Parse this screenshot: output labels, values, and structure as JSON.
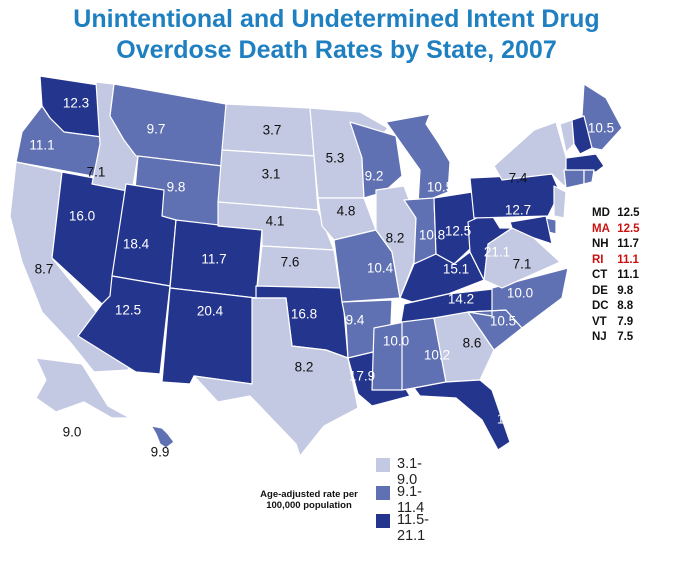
{
  "title_line1": "Unintentional and Undetermined Intent Drug",
  "title_line2": "Overdose Death Rates by State, 2007",
  "colors": {
    "low": "#c3c9e2",
    "mid": "#5f70b3",
    "high": "#24358e",
    "title": "#1e7fc1",
    "highlight": "#cc1111"
  },
  "states": [
    {
      "abbr": "WA",
      "value": "12.3",
      "cat": "high"
    },
    {
      "abbr": "OR",
      "value": "11.1",
      "cat": "mid"
    },
    {
      "abbr": "CA",
      "value": "8.7",
      "cat": "low"
    },
    {
      "abbr": "NV",
      "value": "16.0",
      "cat": "high"
    },
    {
      "abbr": "ID",
      "value": "7.1",
      "cat": "low"
    },
    {
      "abbr": "MT",
      "value": "9.7",
      "cat": "mid"
    },
    {
      "abbr": "WY",
      "value": "9.8",
      "cat": "mid"
    },
    {
      "abbr": "UT",
      "value": "18.4",
      "cat": "high"
    },
    {
      "abbr": "AZ",
      "value": "12.5",
      "cat": "high"
    },
    {
      "abbr": "CO",
      "value": "11.7",
      "cat": "high"
    },
    {
      "abbr": "NM",
      "value": "20.4",
      "cat": "high"
    },
    {
      "abbr": "ND",
      "value": "3.7",
      "cat": "low"
    },
    {
      "abbr": "SD",
      "value": "3.1",
      "cat": "low"
    },
    {
      "abbr": "NE",
      "value": "4.1",
      "cat": "low"
    },
    {
      "abbr": "KS",
      "value": "7.6",
      "cat": "low"
    },
    {
      "abbr": "OK",
      "value": "16.8",
      "cat": "high"
    },
    {
      "abbr": "TX",
      "value": "8.2",
      "cat": "low"
    },
    {
      "abbr": "MN",
      "value": "5.3",
      "cat": "low"
    },
    {
      "abbr": "IA",
      "value": "4.8",
      "cat": "low"
    },
    {
      "abbr": "MO",
      "value": "10.4",
      "cat": "mid"
    },
    {
      "abbr": "AR",
      "value": "9.4",
      "cat": "mid"
    },
    {
      "abbr": "LA",
      "value": "17.9",
      "cat": "high"
    },
    {
      "abbr": "WI",
      "value": "9.2",
      "cat": "mid"
    },
    {
      "abbr": "IL",
      "value": "8.2",
      "cat": "low"
    },
    {
      "abbr": "MI",
      "value": "10.5",
      "cat": "mid"
    },
    {
      "abbr": "IN",
      "value": "10.8",
      "cat": "mid"
    },
    {
      "abbr": "OH",
      "value": "12.5",
      "cat": "high"
    },
    {
      "abbr": "KY",
      "value": "15.1",
      "cat": "high"
    },
    {
      "abbr": "TN",
      "value": "14.2",
      "cat": "high"
    },
    {
      "abbr": "MS",
      "value": "10.0",
      "cat": "mid"
    },
    {
      "abbr": "AL",
      "value": "10.2",
      "cat": "mid"
    },
    {
      "abbr": "GA",
      "value": "8.6",
      "cat": "low"
    },
    {
      "abbr": "FL",
      "value": "13.6",
      "cat": "high"
    },
    {
      "abbr": "SC",
      "value": "10.5",
      "cat": "mid"
    },
    {
      "abbr": "NC",
      "value": "10.0",
      "cat": "mid"
    },
    {
      "abbr": "VA",
      "value": "7.1",
      "cat": "low"
    },
    {
      "abbr": "WV",
      "value": "21.1",
      "cat": "high"
    },
    {
      "abbr": "PA",
      "value": "12.7",
      "cat": "high"
    },
    {
      "abbr": "NY",
      "value": "7.4",
      "cat": "low"
    },
    {
      "abbr": "ME",
      "value": "10.5",
      "cat": "mid"
    },
    {
      "abbr": "AK",
      "value": "9.0",
      "cat": "low"
    },
    {
      "abbr": "HI",
      "value": "9.9",
      "cat": "mid"
    },
    {
      "abbr": "VT",
      "value": "",
      "cat": "low"
    },
    {
      "abbr": "NH",
      "value": "",
      "cat": "high"
    },
    {
      "abbr": "MA",
      "value": "",
      "cat": "high"
    },
    {
      "abbr": "CT",
      "value": "",
      "cat": "mid"
    },
    {
      "abbr": "RI",
      "value": "",
      "cat": "mid"
    },
    {
      "abbr": "NJ",
      "value": "",
      "cat": "low"
    },
    {
      "abbr": "DE",
      "value": "",
      "cat": "mid"
    },
    {
      "abbr": "MD",
      "value": "",
      "cat": "high"
    }
  ],
  "small_states": [
    {
      "abbr": "MD",
      "value": "12.5",
      "highlight": false
    },
    {
      "abbr": "MA",
      "value": "12.5",
      "highlight": true
    },
    {
      "abbr": "NH",
      "value": "11.7",
      "highlight": false
    },
    {
      "abbr": "RI",
      "value": "11.1",
      "highlight": true
    },
    {
      "abbr": "CT",
      "value": "11.1",
      "highlight": false
    },
    {
      "abbr": "DE",
      "value": "9.8",
      "highlight": false
    },
    {
      "abbr": "DC",
      "value": "8.8",
      "highlight": false
    },
    {
      "abbr": "VT",
      "value": "7.9",
      "highlight": false
    },
    {
      "abbr": "NJ",
      "value": "7.5",
      "highlight": false
    }
  ],
  "legend": [
    {
      "label": "3.1-9.0",
      "cat": "low"
    },
    {
      "label": "9.1-11.4",
      "cat": "mid"
    },
    {
      "label": "11.5-21.1",
      "cat": "high"
    }
  ],
  "note_line1": "Age-adjusted rate per",
  "note_line2": "100,000 population"
}
